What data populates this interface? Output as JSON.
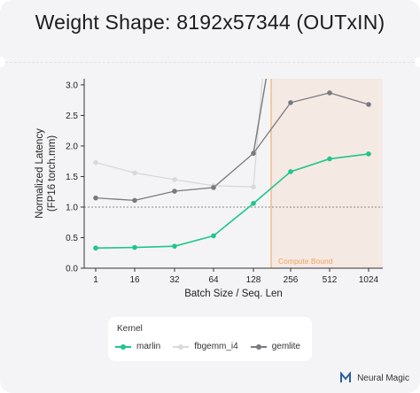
{
  "title": "Weight Shape: 8192x57344 (OUTxIN)",
  "brand": {
    "name": "Neural Magic",
    "icon": "neural-magic-logo-icon",
    "color": "#2c5f9e"
  },
  "colors": {
    "marlin": "#1fc68a",
    "fbgemm_i4": "#d9d9dc",
    "gemlite": "#7a7a7e",
    "compute_bound_fill": "#f5e9e4",
    "compute_bound_line": "#f2a25a",
    "reference_line": "#888888"
  },
  "legend": {
    "title": "Kernel",
    "items": [
      "marlin",
      "fbgemm_i4",
      "gemlite"
    ]
  },
  "chart_data": {
    "type": "line",
    "title": "Weight Shape: 8192x57344 (OUTxIN)",
    "xlabel": "Batch Size / Seq. Len",
    "ylabel": "Normalized Latency\n(FP16 torch.mm)",
    "categories": [
      "1",
      "16",
      "32",
      "64",
      "128",
      "256",
      "512",
      "1024"
    ],
    "ylim": [
      0,
      3.1
    ],
    "yticks": [
      0.0,
      0.5,
      1.0,
      1.5,
      2.0,
      2.5,
      3.0
    ],
    "ytick_labels": [
      "0.0",
      "0.5",
      "1.0",
      "1.5",
      "2.0",
      "2.5",
      "3.0"
    ],
    "reference_line": 1.0,
    "compute_bound": {
      "label": "Compute Bound",
      "start_x": 128,
      "end_x": 1024
    },
    "series": [
      {
        "name": "marlin",
        "x": [
          1,
          16,
          32,
          64,
          128,
          256,
          512,
          1024
        ],
        "values": [
          0.33,
          0.34,
          0.36,
          0.53,
          1.06,
          1.58,
          1.79,
          1.87
        ]
      },
      {
        "name": "fbgemm_i4",
        "x": [
          1,
          16,
          32,
          64,
          128,
          256
        ],
        "values": [
          1.73,
          1.56,
          1.45,
          1.35,
          1.33,
          3.3
        ]
      },
      {
        "name": "gemlite",
        "x": [
          1,
          16,
          32,
          64,
          128,
          256,
          512,
          1024,
          256
        ],
        "values": [
          1.15,
          1.11,
          1.26,
          1.32,
          1.88,
          2.71,
          2.87,
          2.68,
          3.3
        ]
      }
    ]
  }
}
